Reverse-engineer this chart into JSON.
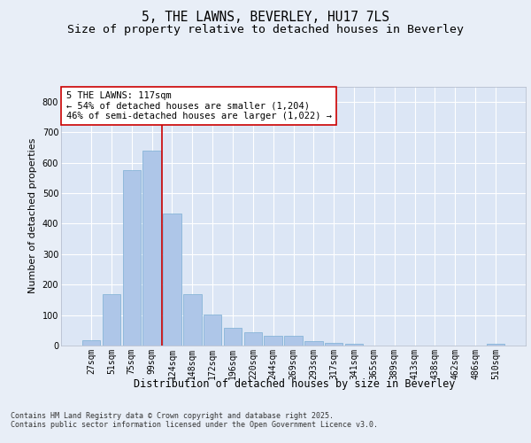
{
  "title1": "5, THE LAWNS, BEVERLEY, HU17 7LS",
  "title2": "Size of property relative to detached houses in Beverley",
  "xlabel": "Distribution of detached houses by size in Beverley",
  "ylabel": "Number of detached properties",
  "categories": [
    "27sqm",
    "51sqm",
    "75sqm",
    "99sqm",
    "124sqm",
    "148sqm",
    "172sqm",
    "196sqm",
    "220sqm",
    "244sqm",
    "269sqm",
    "293sqm",
    "317sqm",
    "341sqm",
    "365sqm",
    "389sqm",
    "413sqm",
    "438sqm",
    "462sqm",
    "486sqm",
    "510sqm"
  ],
  "values": [
    18,
    168,
    575,
    638,
    432,
    168,
    103,
    57,
    44,
    32,
    32,
    14,
    9,
    5,
    0,
    0,
    0,
    0,
    0,
    0,
    7
  ],
  "bar_color": "#aec6e8",
  "bar_edge_color": "#7bafd4",
  "vline_x": 3.5,
  "vline_color": "#cc0000",
  "annotation_text": "5 THE LAWNS: 117sqm\n← 54% of detached houses are smaller (1,204)\n46% of semi-detached houses are larger (1,022) →",
  "annotation_box_color": "#ffffff",
  "annotation_box_edge": "#cc0000",
  "footnote": "Contains HM Land Registry data © Crown copyright and database right 2025.\nContains public sector information licensed under the Open Government Licence v3.0.",
  "background_color": "#e8eef7",
  "plot_bg_color": "#dce6f5",
  "ylim": [
    0,
    850
  ],
  "yticks": [
    0,
    100,
    200,
    300,
    400,
    500,
    600,
    700,
    800
  ],
  "grid_color": "#ffffff",
  "title1_fontsize": 10.5,
  "title2_fontsize": 9.5,
  "tick_fontsize": 7,
  "ylabel_fontsize": 8,
  "xlabel_fontsize": 8.5,
  "annot_fontsize": 7.5,
  "footnote_fontsize": 6
}
